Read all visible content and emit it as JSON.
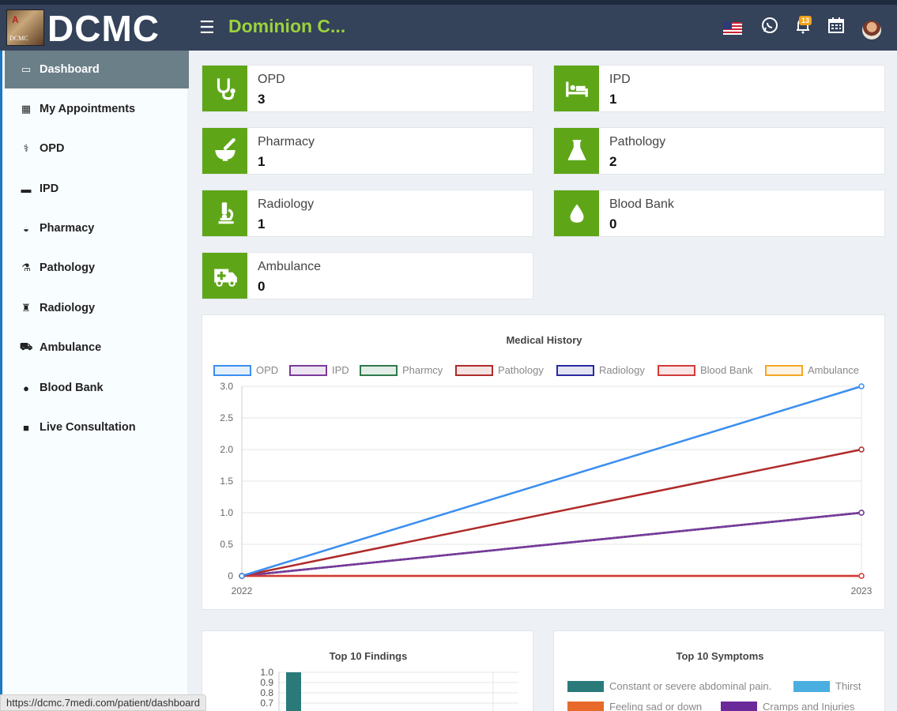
{
  "header": {
    "logo_text": "DCMC",
    "logo_mark": "A",
    "logo_sub": "DCMC",
    "hospital_name": "Dominion C...",
    "notification_count": "13",
    "icons": [
      "menu-icon",
      "us-flag-icon",
      "whatsapp-icon",
      "bell-icon",
      "calendar-icon",
      "user-avatar"
    ]
  },
  "sidebar": {
    "items": [
      {
        "label": "Dashboard",
        "icon": "monitor-icon",
        "active": true
      },
      {
        "label": "My Appointments",
        "icon": "hospital-icon"
      },
      {
        "label": "OPD",
        "icon": "stethoscope-icon"
      },
      {
        "label": "IPD",
        "icon": "bed-icon"
      },
      {
        "label": "Pharmacy",
        "icon": "mortar-pestle-icon"
      },
      {
        "label": "Pathology",
        "icon": "flask-icon"
      },
      {
        "label": "Radiology",
        "icon": "microscope-icon"
      },
      {
        "label": "Ambulance",
        "icon": "ambulance-icon"
      },
      {
        "label": "Blood Bank",
        "icon": "tint-icon"
      },
      {
        "label": "Live Consultation",
        "icon": "video-icon"
      }
    ]
  },
  "cards": [
    {
      "label": "OPD",
      "value": "3",
      "icon": "stethoscope-icon"
    },
    {
      "label": "IPD",
      "value": "1",
      "icon": "bed-icon"
    },
    {
      "label": "Pharmacy",
      "value": "1",
      "icon": "mortar-pestle-icon"
    },
    {
      "label": "Pathology",
      "value": "2",
      "icon": "flask-icon"
    },
    {
      "label": "Radiology",
      "value": "1",
      "icon": "microscope-icon"
    },
    {
      "label": "Blood Bank",
      "value": "0",
      "icon": "tint-icon"
    },
    {
      "label": "Ambulance",
      "value": "0",
      "icon": "ambulance-icon"
    }
  ],
  "colors": {
    "accent_green": "#5ea618",
    "topbar": "#34425a",
    "hospital_name": "#9bd33b"
  },
  "chart_data": [
    {
      "type": "line",
      "title": "Medical History",
      "x": [
        "2022",
        "2023"
      ],
      "ylim": [
        0,
        3.0
      ],
      "yticks": [
        "3.0",
        "2.5",
        "2.0",
        "1.5",
        "1.0",
        "0.5",
        "0"
      ],
      "legend_placement": "top",
      "series": [
        {
          "name": "OPD",
          "values": [
            0,
            3
          ],
          "color": "#3a8ef0"
        },
        {
          "name": "IPD",
          "values": [
            0,
            1
          ],
          "color": "#7a3a9a"
        },
        {
          "name": "Pharmcy",
          "values": [
            0,
            1
          ],
          "color": "#2e7a4a"
        },
        {
          "name": "Pathology",
          "values": [
            0,
            2
          ],
          "color": "#b02a2a"
        },
        {
          "name": "Radiology",
          "values": [
            0,
            1
          ],
          "color": "#2a2aa0"
        },
        {
          "name": "Blood Bank",
          "values": [
            0,
            0
          ],
          "color": "#d23a3a"
        },
        {
          "name": "Ambulance",
          "values": [
            0,
            0
          ],
          "color": "#f5a623"
        }
      ]
    },
    {
      "type": "bar",
      "title": "Top 10 Findings",
      "yticks": [
        "1.0",
        "0.9",
        "0.8",
        "0.7"
      ],
      "values": [
        1.0
      ],
      "color": "#2a7a7a"
    },
    {
      "type": "pie",
      "title": "Top 10 Symptoms",
      "legend": [
        {
          "name": "Constant or severe abdominal pain.",
          "color": "#2a7a7a"
        },
        {
          "name": "Thirst",
          "color": "#4aaee0"
        },
        {
          "name": "Feeling sad or down",
          "color": "#e8692a"
        },
        {
          "name": "Cramps and Injuries",
          "color": "#6a2a9a"
        }
      ]
    }
  ],
  "status_url": "https://dcmc.7medi.com/patient/dashboard"
}
